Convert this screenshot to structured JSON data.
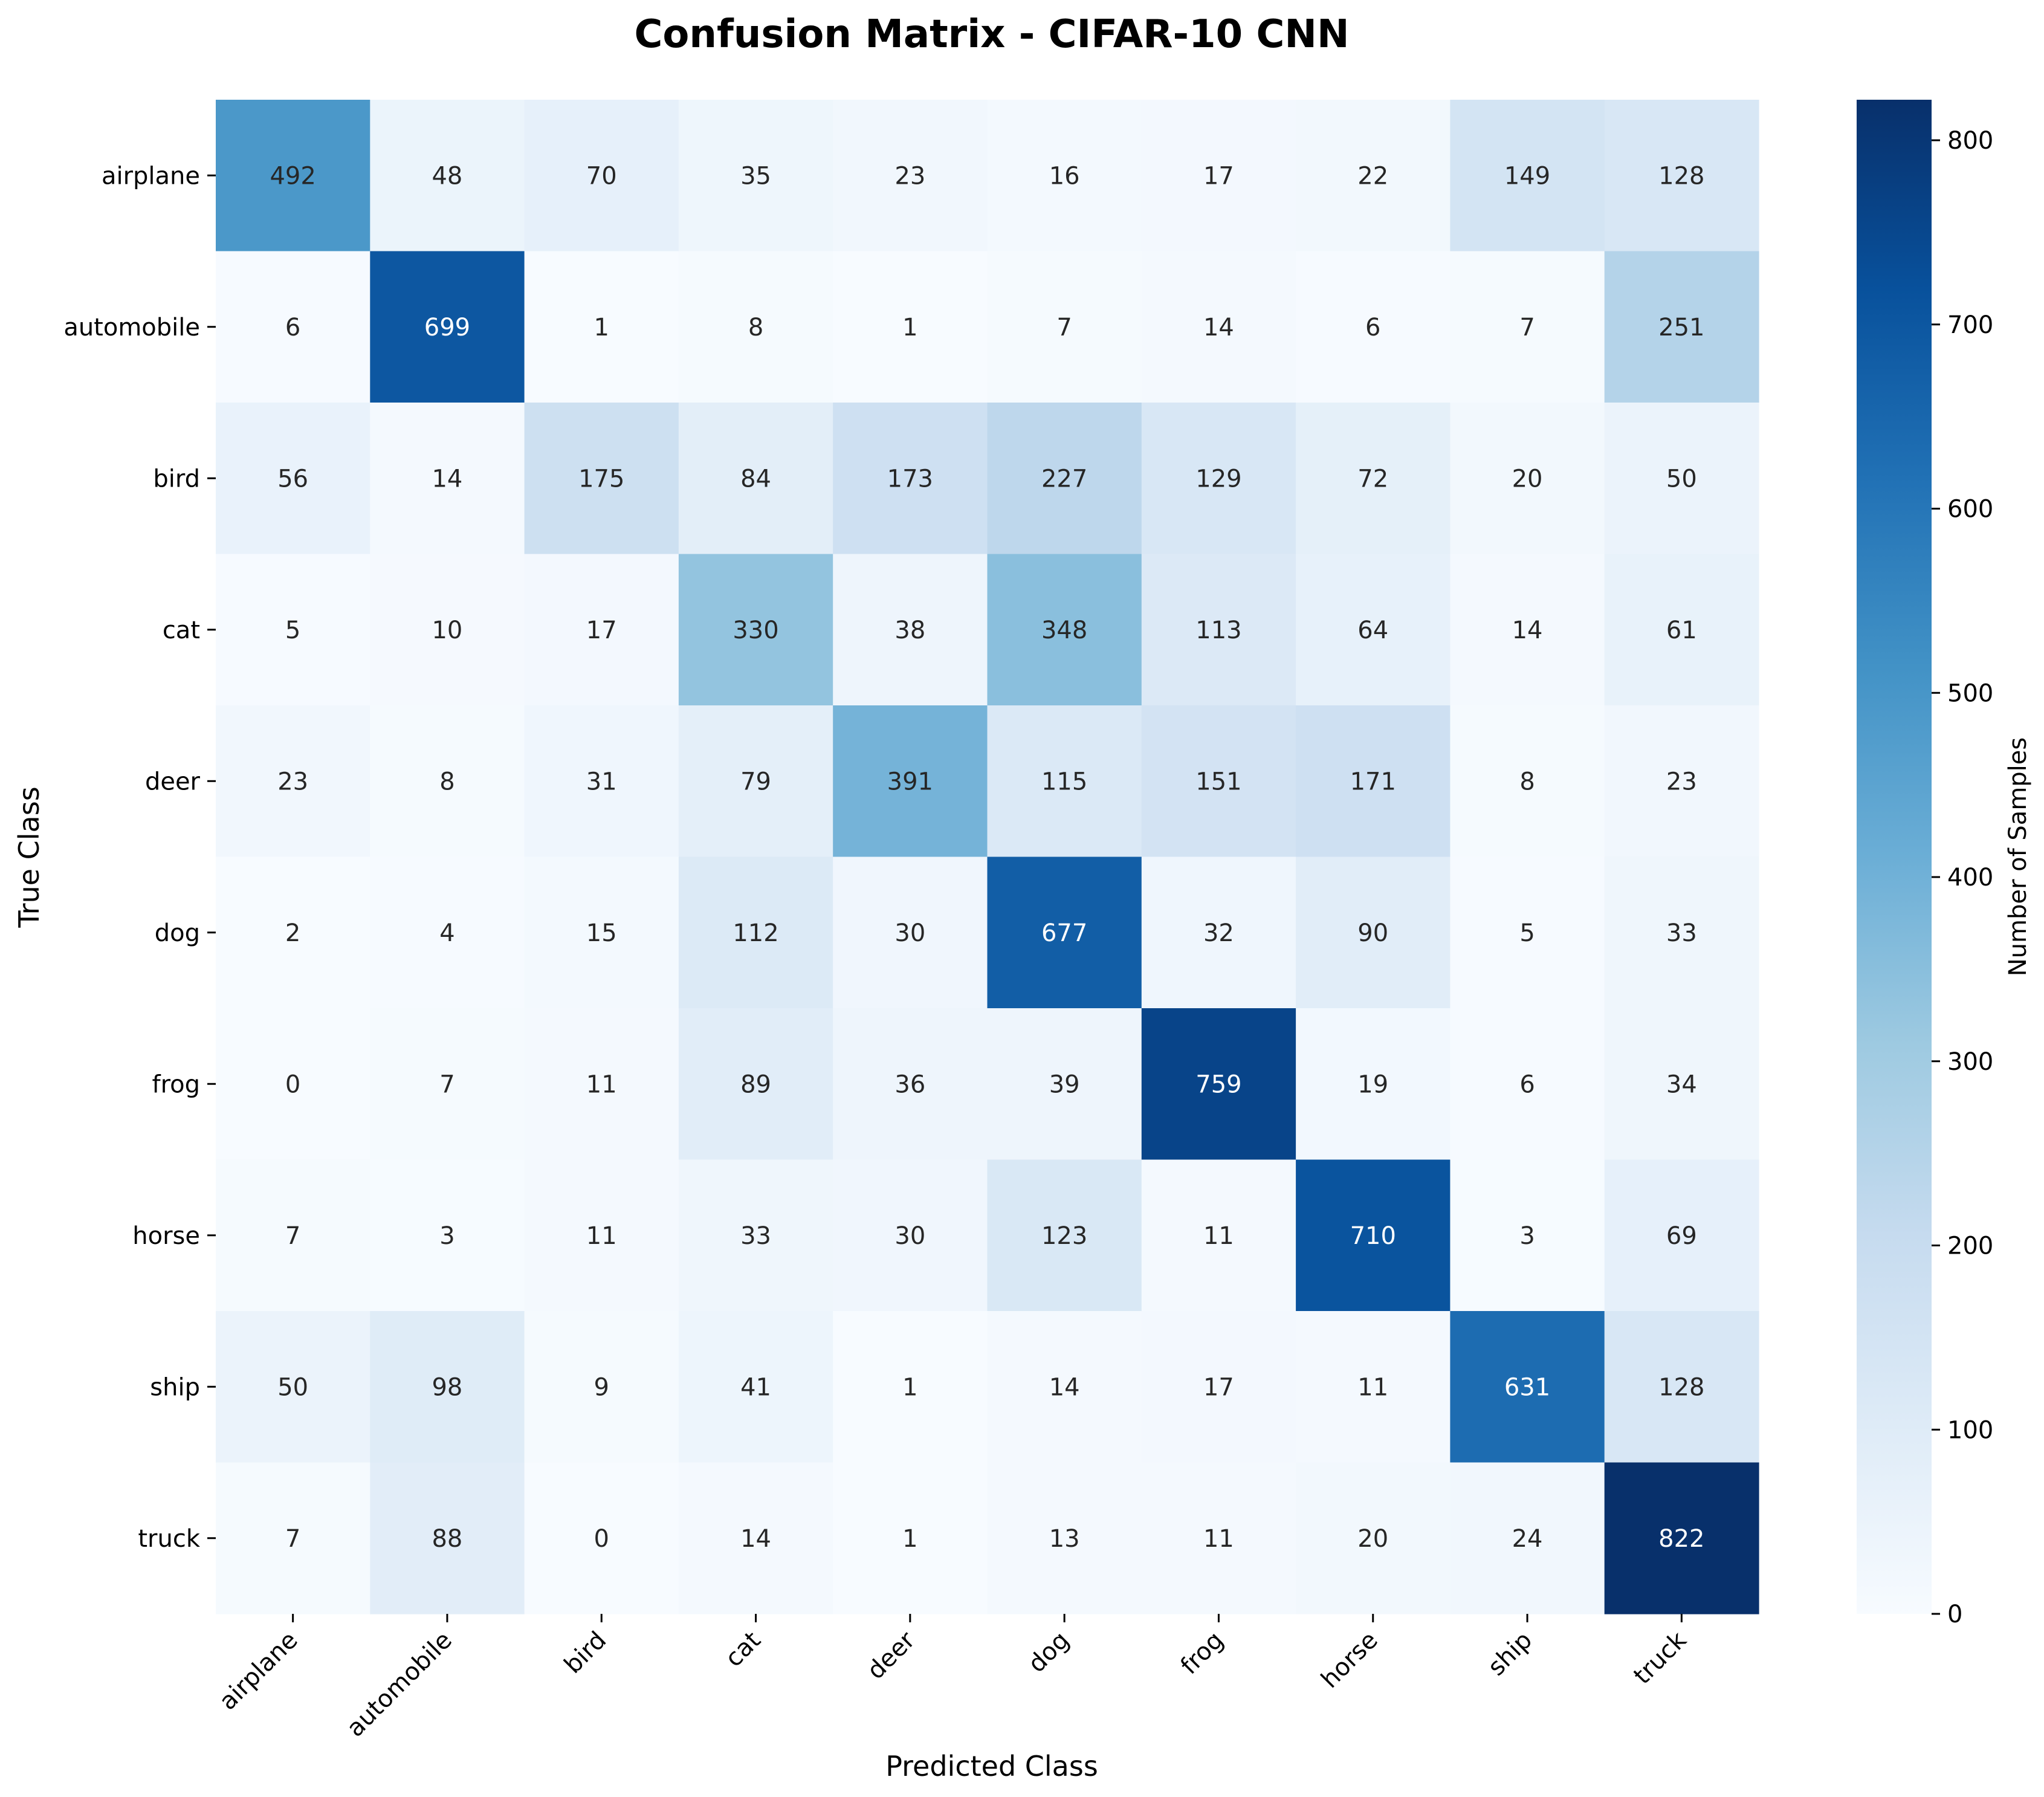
{
  "chart_data": {
    "type": "heatmap",
    "title": "Confusion Matrix - CIFAR-10 CNN",
    "xlabel": "Predicted Class",
    "ylabel": "True Class",
    "x_categories": [
      "airplane",
      "automobile",
      "bird",
      "cat",
      "deer",
      "dog",
      "frog",
      "horse",
      "ship",
      "truck"
    ],
    "y_categories": [
      "airplane",
      "automobile",
      "bird",
      "cat",
      "deer",
      "dog",
      "frog",
      "horse",
      "ship",
      "truck"
    ],
    "values": [
      [
        492,
        48,
        70,
        35,
        23,
        16,
        17,
        22,
        149,
        128
      ],
      [
        6,
        699,
        1,
        8,
        1,
        7,
        14,
        6,
        7,
        251
      ],
      [
        56,
        14,
        175,
        84,
        173,
        227,
        129,
        72,
        20,
        50
      ],
      [
        5,
        10,
        17,
        330,
        38,
        348,
        113,
        64,
        14,
        61
      ],
      [
        23,
        8,
        31,
        79,
        391,
        115,
        151,
        171,
        8,
        23
      ],
      [
        2,
        4,
        15,
        112,
        30,
        677,
        32,
        90,
        5,
        33
      ],
      [
        0,
        7,
        11,
        89,
        36,
        39,
        759,
        19,
        6,
        34
      ],
      [
        7,
        3,
        11,
        33,
        30,
        123,
        11,
        710,
        3,
        69
      ],
      [
        50,
        98,
        9,
        41,
        1,
        14,
        17,
        11,
        631,
        128
      ],
      [
        7,
        88,
        0,
        14,
        1,
        13,
        11,
        20,
        24,
        822
      ]
    ],
    "colorbar": {
      "label": "Number of Samples",
      "range": [
        0,
        822
      ],
      "ticks": [
        0,
        100,
        200,
        300,
        400,
        500,
        600,
        700,
        800
      ]
    },
    "colormap": "Blues",
    "colormap_stops": [
      "#f7fbff",
      "#deebf7",
      "#c6dbef",
      "#9ecae1",
      "#6baed6",
      "#4292c6",
      "#2171b5",
      "#08519c",
      "#08306b"
    ],
    "annotation_colors": {
      "light_text": "#ffffff",
      "dark_text": "#262626"
    }
  }
}
